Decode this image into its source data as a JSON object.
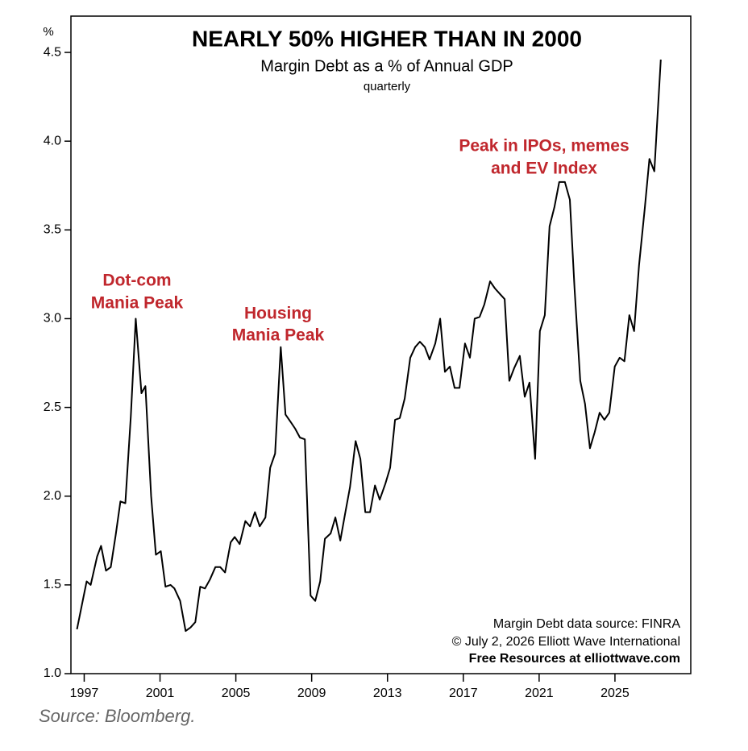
{
  "chart_data": {
    "type": "line",
    "title": "NEARLY 50% HIGHER THAN IN 2000",
    "subtitle": "Margin Debt as a % of Annual GDP",
    "subtitle2": "quarterly",
    "y_label": "%",
    "annotations": [
      {
        "lines": [
          "Dot-com",
          "Mania Peak"
        ],
        "color": "#c0272d"
      },
      {
        "lines": [
          "Housing",
          "Mania Peak"
        ],
        "color": "#c0272d"
      },
      {
        "lines": [
          "Peak in IPOs, memes",
          "and EV Index"
        ],
        "color": "#c0272d"
      }
    ],
    "credits": [
      "Margin Debt data source: FINRA",
      "© July 2, 2026  Elliott Wave International",
      "Free Resources at elliottwave.com"
    ],
    "source": "Source: Bloomberg.",
    "x": [
      1996.62,
      1997.13,
      1997.34,
      1997.68,
      1997.89,
      1998.15,
      1998.4,
      1998.66,
      1998.91,
      1999.17,
      1999.46,
      1999.72,
      2000.02,
      2000.23,
      2000.53,
      2000.78,
      2001.04,
      2001.29,
      2001.55,
      2001.76,
      2002.06,
      2002.35,
      2002.61,
      2002.86,
      2003.12,
      2003.37,
      2003.63,
      2003.92,
      2004.18,
      2004.43,
      2004.73,
      2004.94,
      2005.2,
      2005.5,
      2005.75,
      2006.01,
      2006.26,
      2006.56,
      2006.81,
      2007.07,
      2007.37,
      2007.62,
      2007.88,
      2008.13,
      2008.38,
      2008.64,
      2008.94,
      2009.19,
      2009.45,
      2009.7,
      2010.0,
      2010.25,
      2010.51,
      2010.76,
      2011.02,
      2011.32,
      2011.57,
      2011.83,
      2012.08,
      2012.34,
      2012.59,
      2012.89,
      2013.14,
      2013.4,
      2013.65,
      2013.91,
      2014.2,
      2014.46,
      2014.71,
      2014.97,
      2015.22,
      2015.52,
      2015.78,
      2016.03,
      2016.29,
      2016.54,
      2016.8,
      2017.09,
      2017.35,
      2017.6,
      2017.86,
      2018.11,
      2018.41,
      2018.67,
      2018.92,
      2019.18,
      2019.43,
      2019.68,
      2019.98,
      2020.24,
      2020.49,
      2020.79,
      2021.04,
      2021.3,
      2021.55,
      2021.81,
      2022.06,
      2022.36,
      2022.62,
      2022.87,
      2023.17,
      2023.42,
      2023.68,
      2023.93,
      2024.19,
      2024.44,
      2024.7,
      2024.99,
      2025.25,
      2025.5,
      2025.76,
      2026.01,
      2026.27,
      2026.57,
      2026.82,
      2027.08,
      2027.42
    ],
    "series": [
      {
        "name": "Margin Debt as a % of Annual GDP",
        "color": "#000000",
        "values": [
          1.25,
          1.52,
          1.5,
          1.66,
          1.72,
          1.58,
          1.6,
          1.78,
          1.97,
          1.96,
          2.45,
          3.0,
          2.58,
          2.62,
          2.0,
          1.67,
          1.69,
          1.49,
          1.5,
          1.48,
          1.41,
          1.24,
          1.26,
          1.29,
          1.49,
          1.48,
          1.53,
          1.6,
          1.6,
          1.57,
          1.74,
          1.77,
          1.73,
          1.86,
          1.83,
          1.91,
          1.83,
          1.88,
          2.16,
          2.24,
          2.84,
          2.46,
          2.42,
          2.38,
          2.33,
          2.32,
          1.44,
          1.41,
          1.52,
          1.76,
          1.79,
          1.88,
          1.75,
          1.9,
          2.05,
          2.31,
          2.21,
          1.91,
          1.91,
          2.06,
          1.98,
          2.07,
          2.16,
          2.43,
          2.44,
          2.55,
          2.78,
          2.84,
          2.87,
          2.84,
          2.77,
          2.86,
          3.0,
          2.7,
          2.73,
          2.61,
          2.61,
          2.86,
          2.78,
          3.0,
          3.01,
          3.08,
          3.21,
          3.17,
          3.14,
          3.11,
          2.65,
          2.72,
          2.79,
          2.56,
          2.64,
          2.21,
          2.93,
          3.02,
          3.52,
          3.63,
          3.77,
          3.77,
          3.67,
          3.17,
          2.65,
          2.52,
          2.27,
          2.36,
          2.47,
          2.43,
          2.47,
          2.73,
          2.78,
          2.76,
          3.02,
          2.93,
          3.3,
          3.62,
          3.9,
          3.83,
          4.46
        ]
      }
    ],
    "xlim": [
      1996.3,
      2029
    ],
    "xticks": [
      1997,
      2001,
      2005,
      2009,
      2013,
      2017,
      2021,
      2025
    ],
    "ylim": [
      1.0,
      4.7
    ],
    "yticks": [
      {
        "value": 1.0,
        "label": "1.0"
      },
      1.5,
      {
        "value": 2.0,
        "label": "2.0"
      },
      2.5,
      {
        "value": 3.0,
        "label": "3.0"
      },
      3.5,
      {
        "value": 4.0,
        "label": "4.0"
      },
      4.5
    ],
    "grid": false
  }
}
